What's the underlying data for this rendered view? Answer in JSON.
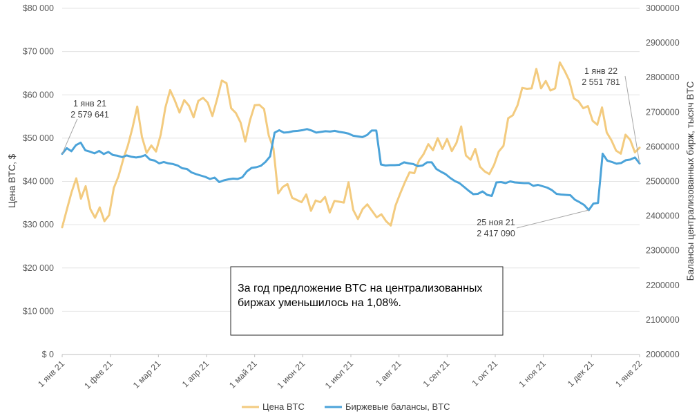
{
  "chart_data": {
    "type": "line",
    "x_labels": [
      "1 янв 21",
      "1 фев 21",
      "1 мар 21",
      "1 апр 21",
      "1 май 21",
      "1 июн 21",
      "1 июл 21",
      "1 авг 21",
      "1 сен 21",
      "1 окт 21",
      "1 ноя 21",
      "1 дек 21",
      "1 янв 22"
    ],
    "y_left": {
      "title": "Цена BTC, $",
      "range": [
        0,
        80000
      ],
      "ticks": [
        "$ 0",
        "$10 000",
        "$20 000",
        "$30 000",
        "$40 000",
        "$50 000",
        "$60 000",
        "$70 000",
        "$80 000"
      ]
    },
    "y_right": {
      "title": "Балансы централизованных бирж, тысяч BTC",
      "range": [
        2000000,
        3000000
      ],
      "ticks": [
        "2000000",
        "2100000",
        "2200000",
        "2300000",
        "2400000",
        "2500000",
        "2600000",
        "2700000",
        "2800000",
        "2900000",
        "3000000"
      ]
    },
    "series": [
      {
        "name": "Цена BTC",
        "axis": "left",
        "color": "#F3CB7F",
        "values": [
          29400,
          33500,
          37500,
          40700,
          36000,
          38900,
          33600,
          31600,
          34000,
          30800,
          32200,
          38500,
          41200,
          45100,
          48300,
          52500,
          57300,
          50300,
          46600,
          48300,
          46900,
          50800,
          57100,
          61100,
          58700,
          55900,
          58800,
          57500,
          54800,
          58600,
          59300,
          58200,
          55100,
          59000,
          63300,
          62700,
          56900,
          55800,
          53600,
          49200,
          54100,
          57600,
          57700,
          56700,
          50600,
          47600,
          37200,
          38700,
          39400,
          36200,
          35700,
          35200,
          37000,
          33200,
          35600,
          35200,
          36400,
          32800,
          35500,
          35300,
          35100,
          39800,
          33400,
          31300,
          33600,
          34700,
          33200,
          31700,
          32400,
          30800,
          29800,
          34400,
          37200,
          39800,
          42100,
          41900,
          44800,
          46300,
          48600,
          47200,
          50000,
          47500,
          49800,
          47000,
          48900,
          52700,
          46000,
          45000,
          47500,
          43400,
          42300,
          41700,
          43800,
          46900,
          48200,
          54600,
          55300,
          57600,
          61600,
          61400,
          61500,
          66000,
          61500,
          63200,
          61000,
          61500,
          67500,
          65600,
          63400,
          59200,
          58500,
          56900,
          57400,
          54000,
          53100,
          57100,
          51300,
          49500,
          47100,
          46400,
          50800,
          49600,
          46700,
          47800
        ],
        "start_label": "",
        "end_label": ""
      },
      {
        "name": "Биржевые балансы, BTC",
        "axis": "right",
        "color": "#4BA3D9",
        "values": [
          2579641,
          2596000,
          2587000,
          2605000,
          2612000,
          2590000,
          2586000,
          2581000,
          2588000,
          2579000,
          2585000,
          2576000,
          2574000,
          2570000,
          2575000,
          2571000,
          2569000,
          2571000,
          2576000,
          2563000,
          2560000,
          2552000,
          2556000,
          2552000,
          2550000,
          2546000,
          2538000,
          2536000,
          2526000,
          2521000,
          2517000,
          2513000,
          2507000,
          2511000,
          2498000,
          2503000,
          2506000,
          2508000,
          2507000,
          2512000,
          2529000,
          2539000,
          2541000,
          2545000,
          2556000,
          2572000,
          2641000,
          2648000,
          2641000,
          2642000,
          2645000,
          2646000,
          2648000,
          2651000,
          2647000,
          2641000,
          2643000,
          2645000,
          2644000,
          2646000,
          2643000,
          2641000,
          2638000,
          2632000,
          2630000,
          2628000,
          2634000,
          2647000,
          2647000,
          2549000,
          2546000,
          2547000,
          2547000,
          2548000,
          2555000,
          2552000,
          2550000,
          2544000,
          2546000,
          2555000,
          2555000,
          2536000,
          2528000,
          2521000,
          2510000,
          2501000,
          2495000,
          2484000,
          2473000,
          2463000,
          2464000,
          2471000,
          2461000,
          2458000,
          2497000,
          2498000,
          2495000,
          2500000,
          2497000,
          2496000,
          2495000,
          2495000,
          2487000,
          2490000,
          2486000,
          2482000,
          2475000,
          2464000,
          2462000,
          2461000,
          2460000,
          2447000,
          2440000,
          2432000,
          2417090,
          2436000,
          2438000,
          2580000,
          2560000,
          2556000,
          2551000,
          2553000,
          2561000,
          2563000,
          2569000,
          2551781
        ],
        "start_label": "",
        "end_label": ""
      }
    ],
    "annotations": [
      {
        "date": "1 янв 21",
        "value": "2 579 641"
      },
      {
        "date": "25 ноя 21",
        "value": "2 417 090"
      },
      {
        "date": "1 янв 22",
        "value": "2 551 781"
      }
    ],
    "note": "За год предложение BTC на централизованных биржах уменьшилось на 1,08%.",
    "legend": [
      "Цена BTC",
      "Биржевые балансы, BTC"
    ]
  }
}
